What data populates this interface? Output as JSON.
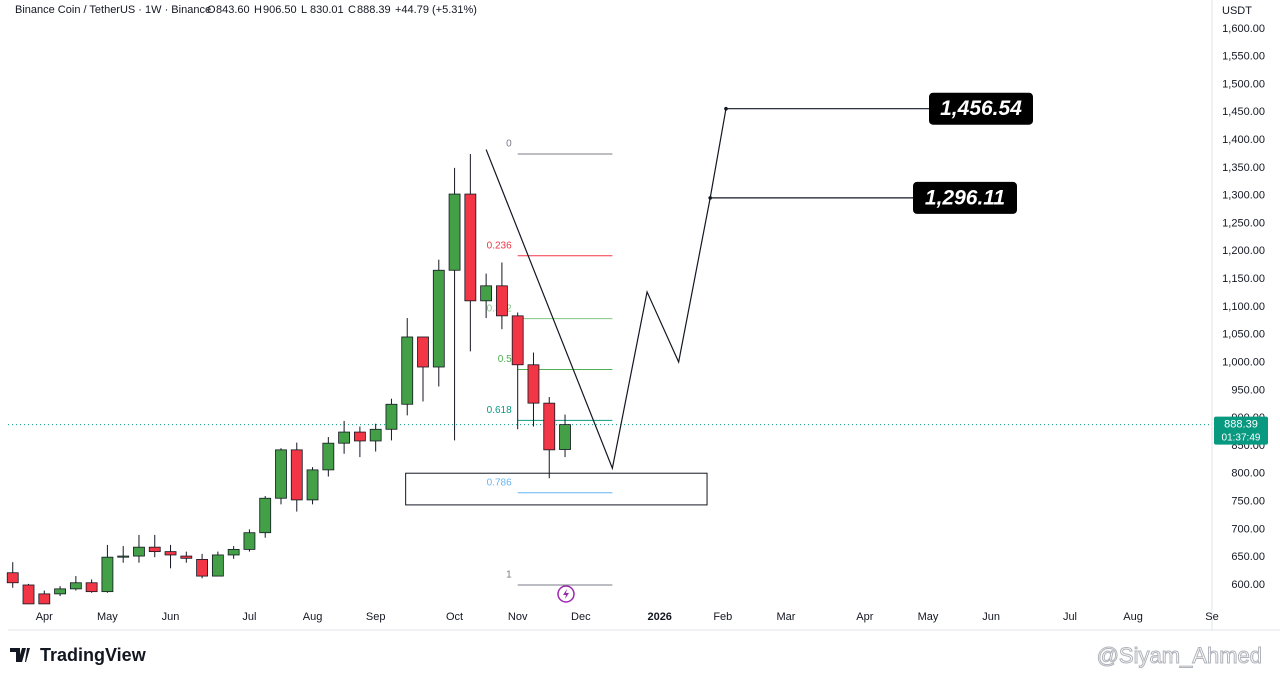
{
  "chart_data": {
    "type": "candlestick",
    "header": {
      "symbol": "Binance Coin / TetherUS · 1W · Binance",
      "ohlc": [
        {
          "key": "O",
          "text": "843.60"
        },
        {
          "key": "H",
          "text": "906.50"
        },
        {
          "key": "L",
          "text": "830.01"
        },
        {
          "key": "C",
          "text": "888.39"
        }
      ],
      "change": "+44.79 (+5.31%)"
    },
    "currency": "USDT",
    "x": [
      0,
      1,
      2,
      3,
      4,
      5,
      6,
      7,
      8,
      9,
      10,
      11,
      12,
      13,
      14,
      15,
      16,
      17,
      18,
      19,
      20,
      21,
      22,
      23,
      24,
      25,
      26,
      27,
      28,
      29,
      30,
      31,
      32,
      33,
      34,
      35
    ],
    "open": [
      622,
      600,
      584,
      584,
      593,
      604,
      588,
      650,
      652,
      668,
      660,
      652,
      646,
      616,
      654,
      664,
      694,
      756,
      843,
      753,
      807,
      855,
      875,
      859,
      880,
      925,
      1046,
      992,
      1166,
      1303,
      1111,
      1138,
      1084,
      996,
      927,
      843.6
    ],
    "high": [
      641,
      602,
      590,
      598,
      616,
      610,
      672,
      670,
      690,
      690,
      672,
      660,
      656,
      660,
      670,
      700,
      760,
      846,
      856,
      812,
      866,
      895,
      885,
      890,
      935,
      1080,
      1046,
      1185,
      1350,
      1375,
      1160,
      1180,
      1090,
      1018,
      938,
      906.5
    ],
    "low": [
      595,
      566,
      566,
      580,
      590,
      586,
      586,
      640,
      640,
      650,
      630,
      640,
      612,
      616,
      647,
      660,
      685,
      745,
      732,
      745,
      795,
      836,
      830,
      840,
      860,
      905,
      930,
      957,
      860,
      1020,
      1080,
      1060,
      880,
      885,
      792,
      830.01
    ],
    "close": [
      604,
      566,
      566,
      593,
      604,
      588,
      650,
      652,
      668,
      660,
      654,
      648,
      616,
      654,
      664,
      694,
      756,
      843,
      753,
      807,
      855,
      875,
      859,
      880,
      925,
      1046,
      992,
      1166,
      1303,
      1111,
      1138,
      1084,
      996,
      927,
      843,
      888.39
    ],
    "up_color": "#43a047",
    "down_color": "#f23645",
    "xlim": [
      -0.3,
      76.0
    ],
    "xticks": [
      {
        "value": 2,
        "label": "Apr"
      },
      {
        "value": 6,
        "label": "May"
      },
      {
        "value": 10,
        "label": "Jun"
      },
      {
        "value": 15,
        "label": "Jul"
      },
      {
        "value": 19,
        "label": "Aug"
      },
      {
        "value": 23,
        "label": "Sep"
      },
      {
        "value": 28,
        "label": "Oct"
      },
      {
        "value": 32,
        "label": "Nov"
      },
      {
        "value": 36,
        "label": "Dec"
      },
      {
        "value": 41,
        "label": "2026"
      },
      {
        "value": 45,
        "label": "Feb"
      },
      {
        "value": 49,
        "label": "Mar"
      },
      {
        "value": 54,
        "label": "Apr"
      },
      {
        "value": 58,
        "label": "May"
      },
      {
        "value": 62,
        "label": "Jun"
      },
      {
        "value": 67,
        "label": "Jul"
      },
      {
        "value": 71,
        "label": "Aug"
      },
      {
        "value": 76,
        "label": "Se"
      }
    ],
    "ylim": [
      564,
      1652
    ],
    "yticks": [
      {
        "value": 600,
        "label": "600.00"
      },
      {
        "value": 650,
        "label": "650.00"
      },
      {
        "value": 700,
        "label": "700.00"
      },
      {
        "value": 750,
        "label": "750.00"
      },
      {
        "value": 800,
        "label": "800.00"
      },
      {
        "value": 850,
        "label": "850.00"
      },
      {
        "value": 900,
        "label": "900.00"
      },
      {
        "value": 950,
        "label": "950.00"
      },
      {
        "value": 1000,
        "label": "1,000.00"
      },
      {
        "value": 1050,
        "label": "1,050.00"
      },
      {
        "value": 1100,
        "label": "1,100.00"
      },
      {
        "value": 1150,
        "label": "1,150.00"
      },
      {
        "value": 1200,
        "label": "1,200.00"
      },
      {
        "value": 1250,
        "label": "1,250.00"
      },
      {
        "value": 1300,
        "label": "1,300.00"
      },
      {
        "value": 1350,
        "label": "1,350.00"
      },
      {
        "value": 1400,
        "label": "1,400.00"
      },
      {
        "value": 1450,
        "label": "1,450.00"
      },
      {
        "value": 1500,
        "label": "1,500.00"
      },
      {
        "value": 1550,
        "label": "1,550.00"
      },
      {
        "value": 1600,
        "label": "1,600.00"
      }
    ],
    "grid": false,
    "last_price": {
      "value": 888.39,
      "countdown": "01:37:49",
      "color": "#089981"
    },
    "fibonacci": {
      "start": 1375,
      "end": 600,
      "x": [
        32,
        38
      ],
      "levels": [
        0,
        0.236,
        0.382,
        0.5,
        0.618,
        0.786,
        1
      ],
      "colors": [
        "#787b86",
        "#f23645",
        "#81c784",
        "#4caf50",
        "#089981",
        "#64b5f6",
        "#787b86"
      ]
    },
    "zone": {
      "x": [
        24.9,
        44
      ],
      "values": [
        744,
        801
      ]
    },
    "projection": {
      "x": [
        30,
        38,
        40.2,
        42.2,
        44.2,
        45.2
      ],
      "values": [
        1383,
        810,
        1127,
        1001,
        1296.11,
        1456.54
      ]
    },
    "callouts": [
      {
        "value": 1456.54,
        "label": "1,456.54",
        "x": 45.2
      },
      {
        "value": 1296.11,
        "label": "1,296.11",
        "x": 44.2
      }
    ],
    "branding": "TradingView",
    "watermark": "@Siyam_Ahmed"
  }
}
